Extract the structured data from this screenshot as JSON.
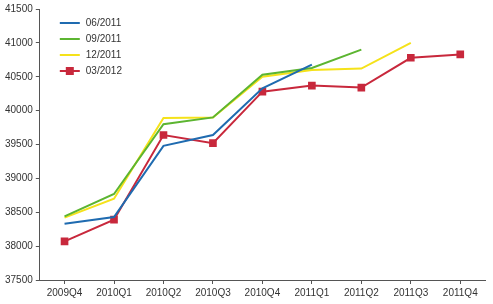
{
  "chart_data": {
    "type": "line",
    "categories": [
      "2009Q4",
      "2010Q1",
      "2010Q2",
      "2010Q3",
      "2010Q4",
      "2011Q1",
      "2011Q2",
      "2011Q3",
      "2011Q4"
    ],
    "series": [
      {
        "name": "06/2011",
        "color": "#1f6bb0",
        "marker": "none",
        "values": [
          38330,
          38430,
          39480,
          39640,
          40330,
          40680,
          null,
          null,
          null
        ]
      },
      {
        "name": "09/2011",
        "color": "#5cb531",
        "marker": "none",
        "values": [
          38440,
          38770,
          39800,
          39900,
          40530,
          40630,
          40900,
          null,
          null
        ]
      },
      {
        "name": "12/2011",
        "color": "#f5e21a",
        "marker": "none",
        "values": [
          38420,
          38700,
          39890,
          39900,
          40500,
          40600,
          40620,
          41000,
          null
        ]
      },
      {
        "name": "03/2012",
        "color": "#c8283c",
        "marker": "square",
        "values": [
          38070,
          38390,
          39640,
          39520,
          40280,
          40370,
          40340,
          40780,
          40830
        ]
      }
    ],
    "ylim": [
      37500,
      41500
    ],
    "yticks": [
      37500,
      38000,
      38500,
      39000,
      39500,
      40000,
      40500,
      41000,
      41500
    ],
    "grid": false,
    "legend": "upper left"
  }
}
